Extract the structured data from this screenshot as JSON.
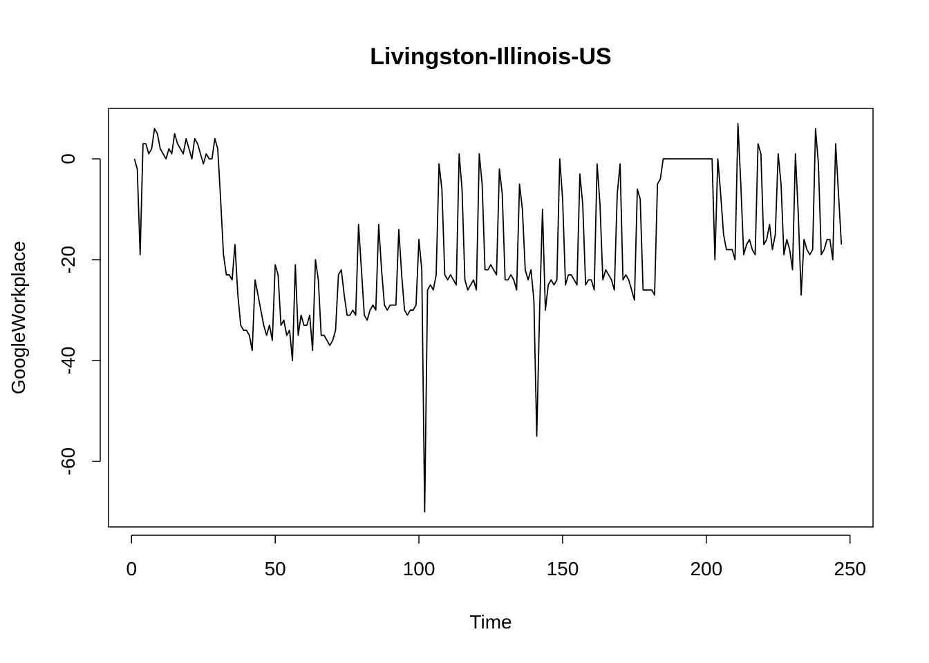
{
  "chart_data": {
    "type": "line",
    "title": "Livingston-Illinois-US",
    "xlabel": "Time",
    "ylabel": "GoogleWorkplace",
    "xlim": [
      -8,
      258
    ],
    "ylim": [
      -73,
      10
    ],
    "xticks": [
      0,
      50,
      100,
      150,
      200,
      250
    ],
    "yticks": [
      0,
      -20,
      -40,
      -60
    ],
    "xtick_labels": [
      "0",
      "50",
      "100",
      "150",
      "200",
      "250"
    ],
    "ytick_labels": [
      "0",
      "-20",
      "-40",
      "-60"
    ],
    "grid": false,
    "series": [
      {
        "name": "GoogleWorkplace",
        "color": "#000000",
        "x_start": 1,
        "values": [
          0,
          -2,
          -19,
          3,
          3,
          1,
          2,
          6,
          5,
          2,
          1,
          0,
          2,
          1,
          5,
          3,
          2,
          1,
          4,
          2,
          0,
          4,
          3,
          1,
          -1,
          1,
          0,
          0,
          4,
          2,
          -8,
          -19,
          -23,
          -23,
          -24,
          -17,
          -27,
          -33,
          -34,
          -34,
          -35,
          -38,
          -24,
          -27,
          -30,
          -33,
          -35,
          -33,
          -36,
          -21,
          -23,
          -33,
          -32,
          -35,
          -34,
          -40,
          -21,
          -35,
          -31,
          -33,
          -33,
          -31,
          -38,
          -20,
          -24,
          -35,
          -35,
          -36,
          -37,
          -36,
          -34,
          -23,
          -22,
          -27,
          -31,
          -31,
          -30,
          -31,
          -13,
          -22,
          -31,
          -32,
          -30,
          -29,
          -30,
          -13,
          -22,
          -29,
          -30,
          -29,
          -29,
          -29,
          -14,
          -23,
          -30,
          -31,
          -30,
          -30,
          -29,
          -16,
          -22,
          -70,
          -26,
          -25,
          -26,
          -23,
          -1,
          -6,
          -23,
          -24,
          -23,
          -24,
          -25,
          1,
          -6,
          -24,
          -26,
          -25,
          -24,
          -26,
          1,
          -5,
          -22,
          -22,
          -21,
          -22,
          -23,
          -2,
          -7,
          -24,
          -24,
          -23,
          -24,
          -26,
          -5,
          -10,
          -22,
          -24,
          -22,
          -28,
          -55,
          -30,
          -10,
          -30,
          -25,
          -24,
          -25,
          -24,
          0,
          -8,
          -25,
          -23,
          -23,
          -24,
          -25,
          -3,
          -9,
          -25,
          -24,
          -24,
          -26,
          -1,
          -9,
          -24,
          -22,
          -23,
          -24,
          -26,
          -7,
          -1,
          -24,
          -23,
          -24,
          -26,
          -28,
          -6,
          -8,
          -26,
          -26,
          -26,
          -26,
          -27,
          -5,
          -4,
          0,
          0,
          0,
          0,
          0,
          0,
          0,
          0,
          0,
          0,
          0,
          0,
          0,
          0,
          0,
          0,
          0,
          0,
          -20,
          0,
          -7,
          -15,
          -18,
          -18,
          -18,
          -20,
          7,
          -5,
          -19,
          -17,
          -16,
          -18,
          -19,
          3,
          1,
          -17,
          -16,
          -13,
          -18,
          -15,
          1,
          -5,
          -19,
          -16,
          -18,
          -22,
          1,
          -11,
          -27,
          -16,
          -18,
          -19,
          -18,
          6,
          -1,
          -19,
          -18,
          -16,
          -16,
          -20,
          3,
          -7,
          -17
        ]
      }
    ]
  }
}
